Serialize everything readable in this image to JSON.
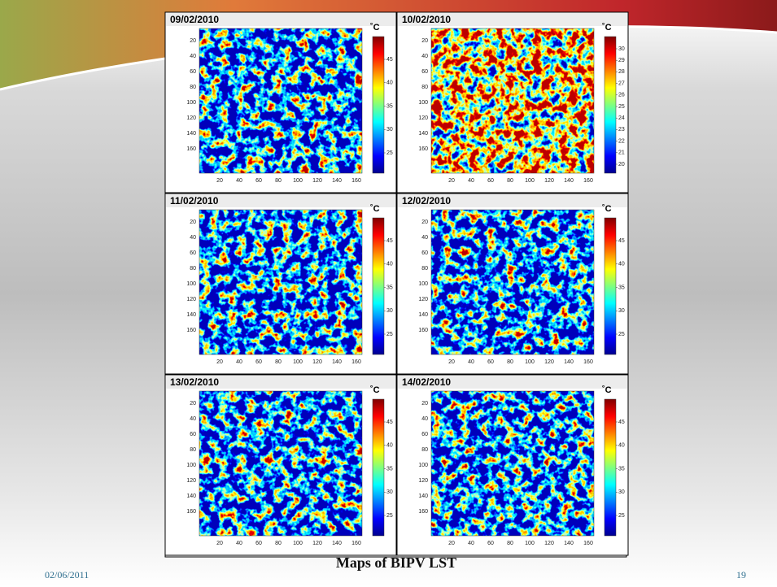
{
  "panels": [
    {
      "date": "09/02/2010",
      "unit": "˚C",
      "colorbar_ticks": [
        45,
        40,
        35,
        30,
        25
      ]
    },
    {
      "date": "10/02/2010",
      "unit": "˚C",
      "colorbar_ticks": [
        30,
        29,
        28,
        27,
        26,
        25,
        24,
        23,
        22,
        21,
        20
      ]
    },
    {
      "date": "11/02/2010",
      "unit": "˚C",
      "colorbar_ticks": [
        45,
        40,
        35,
        30,
        25
      ]
    },
    {
      "date": "12/02/2010",
      "unit": "˚C",
      "colorbar_ticks": [
        45,
        40,
        35,
        30,
        25
      ]
    },
    {
      "date": "13/02/2010",
      "unit": "˚C",
      "colorbar_ticks": [
        45,
        40,
        35,
        30,
        25
      ]
    },
    {
      "date": "14/02/2010",
      "unit": "˚C",
      "colorbar_ticks": [
        45,
        40,
        35,
        30,
        25
      ]
    }
  ],
  "x_ticks": [
    20,
    40,
    60,
    80,
    100,
    120,
    140,
    160
  ],
  "y_ticks": [
    20,
    40,
    60,
    80,
    100,
    120,
    140,
    160
  ],
  "footer": {
    "date": "02/06/2011",
    "title": "Maps of BIPV LST",
    "page": 19
  }
}
